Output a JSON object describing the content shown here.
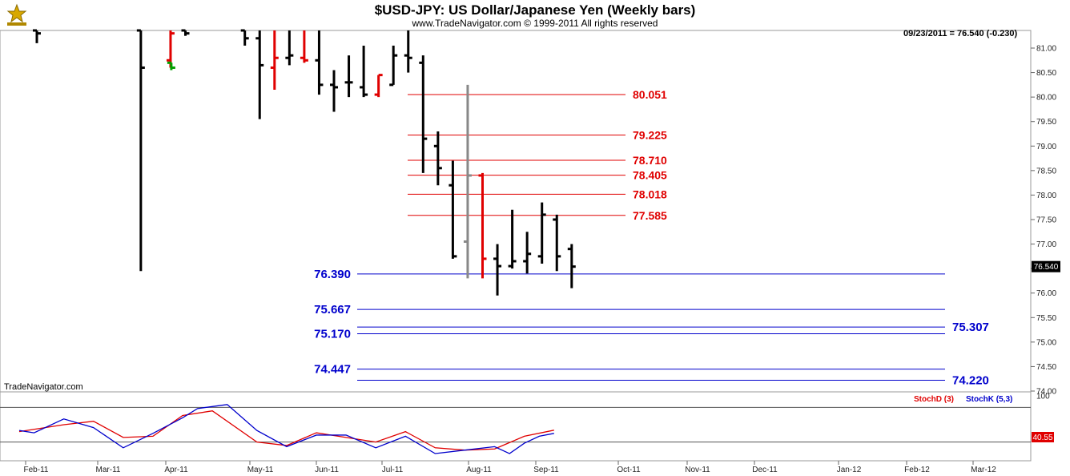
{
  "header": {
    "title": "$USD-JPY:  US Dollar/Japanese Yen  (Weekly bars)",
    "copyright": "www.TradeNavigator.com © 1999-2011 All rights reserved",
    "last_price_info": "09/23/2011 = 76.540 (-0.230)",
    "watermark": "TradeNavigator.com"
  },
  "colors": {
    "up_bar": "#000000",
    "red_bar": "#e00000",
    "green_bar": "#00a000",
    "gray_bar": "#888888",
    "resistance": "#e00000",
    "support": "#0000cc",
    "stoch_d": "#e00000",
    "stoch_k": "#0000cc"
  },
  "chart_data": [
    {
      "type": "ohlc",
      "title": "$USD-JPY:  US Dollar/Japanese Yen  (Weekly bars)",
      "y_axis": {
        "range": [
          73.8,
          81.4
        ],
        "ticks": [
          "74.00",
          "74.50",
          "75.00",
          "75.50",
          "76.00",
          "76.50",
          "77.00",
          "77.50",
          "78.00",
          "78.50",
          "79.00",
          "79.50",
          "80.00",
          "80.50",
          "81.00"
        ]
      },
      "x_axis": {
        "labels": [
          "Feb-11",
          "Mar-11",
          "Apr-11",
          "May-11",
          "Jun-11",
          "Jul-11",
          "Aug-11",
          "Sep-11",
          "Oct-11",
          "Nov-11",
          "Dec-11",
          "Jan-12",
          "Feb-12",
          "Mar-12"
        ]
      },
      "last_price": "76.540",
      "bars": [
        {
          "week": 0,
          "open": 81.4,
          "high": 81.4,
          "low": 81.1,
          "close": 81.3,
          "color": "black"
        },
        {
          "week": 7,
          "open": 81.4,
          "high": 81.4,
          "low": 76.45,
          "close": 80.6,
          "color": "black"
        },
        {
          "week": 9,
          "open": 80.75,
          "high": 81.4,
          "low": 80.6,
          "close": 81.3,
          "color": "red"
        },
        {
          "week": 9.05,
          "open": 80.7,
          "high": 80.7,
          "low": 80.55,
          "close": 80.6,
          "color": "green"
        },
        {
          "week": 10,
          "open": 81.4,
          "high": 81.4,
          "low": 81.25,
          "close": 81.3,
          "color": "black"
        },
        {
          "week": 14,
          "open": 81.4,
          "high": 81.4,
          "low": 81.05,
          "close": 81.2,
          "color": "black"
        },
        {
          "week": 15,
          "open": 81.2,
          "high": 81.4,
          "low": 79.55,
          "close": 80.65,
          "color": "black"
        },
        {
          "week": 16,
          "open": 80.6,
          "high": 81.4,
          "low": 80.15,
          "close": 80.8,
          "color": "red"
        },
        {
          "week": 17,
          "open": 80.8,
          "high": 81.4,
          "low": 80.65,
          "close": 80.85,
          "color": "black"
        },
        {
          "week": 18,
          "open": 80.8,
          "high": 81.4,
          "low": 80.7,
          "close": 80.75,
          "color": "red"
        },
        {
          "week": 19,
          "open": 80.75,
          "high": 81.4,
          "low": 80.05,
          "close": 80.25,
          "color": "black"
        },
        {
          "week": 20,
          "open": 80.25,
          "high": 80.55,
          "low": 79.7,
          "close": 80.2,
          "color": "black"
        },
        {
          "week": 21,
          "open": 80.3,
          "high": 80.85,
          "low": 80.0,
          "close": 80.3,
          "color": "black"
        },
        {
          "week": 22,
          "open": 80.2,
          "high": 81.05,
          "low": 80.0,
          "close": 80.05,
          "color": "black"
        },
        {
          "week": 23,
          "open": 80.05,
          "high": 80.45,
          "low": 80.0,
          "close": 80.45,
          "color": "red"
        },
        {
          "week": 24,
          "open": 80.25,
          "high": 81.05,
          "low": 80.25,
          "close": 80.85,
          "color": "black"
        },
        {
          "week": 25,
          "open": 80.85,
          "high": 81.4,
          "low": 80.5,
          "close": 80.8,
          "color": "black"
        },
        {
          "week": 26,
          "open": 80.7,
          "high": 80.85,
          "low": 78.45,
          "close": 79.15,
          "color": "black"
        },
        {
          "week": 27,
          "open": 79.0,
          "high": 79.3,
          "low": 78.2,
          "close": 78.55,
          "color": "black"
        },
        {
          "week": 28,
          "open": 78.2,
          "high": 78.7,
          "low": 76.7,
          "close": 76.75,
          "color": "black"
        },
        {
          "week": 29,
          "open": 77.05,
          "high": 80.25,
          "low": 76.3,
          "close": 78.4,
          "color": "gray"
        },
        {
          "week": 30,
          "open": 78.4,
          "high": 78.45,
          "low": 76.3,
          "close": 76.7,
          "color": "red"
        },
        {
          "week": 31,
          "open": 76.7,
          "high": 77.0,
          "low": 75.95,
          "close": 76.55,
          "color": "black"
        },
        {
          "week": 32,
          "open": 76.55,
          "high": 77.7,
          "low": 76.5,
          "close": 76.65,
          "color": "black"
        },
        {
          "week": 33,
          "open": 76.65,
          "high": 77.25,
          "low": 76.4,
          "close": 76.8,
          "color": "black"
        },
        {
          "week": 34,
          "open": 76.75,
          "high": 77.85,
          "low": 76.6,
          "close": 77.6,
          "color": "black"
        },
        {
          "week": 35,
          "open": 77.5,
          "high": 77.6,
          "low": 76.45,
          "close": 76.75,
          "color": "black"
        },
        {
          "week": 36,
          "open": 76.9,
          "high": 77.0,
          "low": 76.1,
          "close": 76.54,
          "color": "black"
        }
      ],
      "resistance_levels": [
        "80.051",
        "79.225",
        "78.710",
        "78.405",
        "78.018",
        "77.585"
      ],
      "support_levels_left": [
        "76.390",
        "75.667",
        "75.170",
        "74.447"
      ],
      "support_levels_right": [
        "75.307",
        "74.220"
      ]
    },
    {
      "type": "line",
      "y_axis": {
        "range": [
          0,
          100
        ],
        "ticks": [
          "100"
        ]
      },
      "legend": [
        "StochD (3)",
        "StochK (5,3)"
      ],
      "last_value": "40.55",
      "series": [
        {
          "name": "StochD (3)",
          "color": "red",
          "values": [
            [
              0,
              38
            ],
            [
              3,
              50
            ],
            [
              5,
              56
            ],
            [
              7,
              28
            ],
            [
              9,
              30
            ],
            [
              11,
              66
            ],
            [
              13,
              74
            ],
            [
              16,
              20
            ],
            [
              18,
              14
            ],
            [
              20,
              36
            ],
            [
              22,
              28
            ],
            [
              24,
              20
            ],
            [
              26,
              38
            ],
            [
              28,
              10
            ],
            [
              30,
              6
            ],
            [
              32,
              8
            ],
            [
              34,
              30
            ],
            [
              36,
              40.55
            ]
          ]
        },
        {
          "name": "StochK (5,3)",
          "color": "blue",
          "values": [
            [
              0,
              40
            ],
            [
              1,
              36
            ],
            [
              3,
              60
            ],
            [
              5,
              45
            ],
            [
              7,
              10
            ],
            [
              9,
              35
            ],
            [
              11,
              62
            ],
            [
              12,
              78
            ],
            [
              14,
              85
            ],
            [
              16,
              40
            ],
            [
              18,
              12
            ],
            [
              20,
              32
            ],
            [
              22,
              32
            ],
            [
              24,
              10
            ],
            [
              26,
              30
            ],
            [
              28,
              0
            ],
            [
              30,
              6
            ],
            [
              32,
              12
            ],
            [
              33,
              0
            ],
            [
              34,
              18
            ],
            [
              35,
              30
            ],
            [
              36,
              35
            ]
          ]
        }
      ]
    }
  ]
}
